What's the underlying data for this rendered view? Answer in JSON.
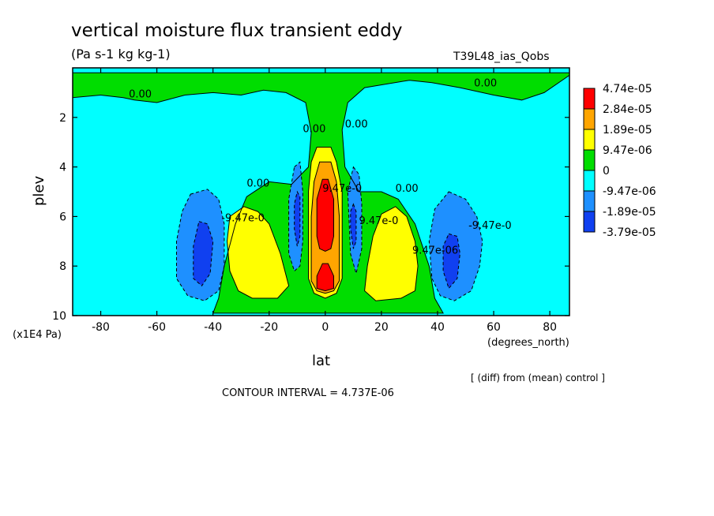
{
  "chart_data": {
    "type": "contour",
    "title": "vertical moisture flux transient eddy",
    "subtitle": "(Pa s-1 kg kg-1)",
    "run_label": "T39L48_ias_Qobs",
    "xlabel": "lat",
    "x_units": "(degrees_north)",
    "ylabel": "plev",
    "y_units": "(x1E4 Pa)",
    "xlim": [
      -90,
      87
    ],
    "ylim": [
      10,
      0
    ],
    "x_ticks": [
      -80,
      -60,
      -40,
      -20,
      0,
      20,
      40,
      60,
      80
    ],
    "y_ticks": [
      2,
      4,
      6,
      8,
      10
    ],
    "x_tick_labels": [
      "-80",
      "-60",
      "-40",
      "-20",
      "0",
      "20",
      "40",
      "60",
      "80"
    ],
    "y_tick_labels": [
      "2",
      "4",
      "6",
      "8",
      "10"
    ],
    "note": "[ (diff) from (mean) control ]",
    "contour_interval": "CONTOUR INTERVAL = 4.737E-06",
    "legend": {
      "position": "right",
      "colors": [
        "#ff0000",
        "#ffa500",
        "#ffff00",
        "#00dd00",
        "#00ffff",
        "#1e90ff",
        "#1040f0"
      ],
      "labels": [
        "4.74e-05",
        "2.84e-05",
        "1.89e-05",
        "9.47e-06",
        "0",
        "-9.47e-06",
        "-1.89e-05",
        "-3.79e-05"
      ]
    },
    "regions": [
      {
        "name": "green-top-band",
        "color": "#00dd00",
        "value_range": [
          0,
          9.47e-06
        ],
        "points": [
          [
            -90,
            0.2
          ],
          [
            87,
            0.2
          ],
          [
            87,
            0.3
          ],
          [
            78,
            1.0
          ],
          [
            70,
            1.3
          ],
          [
            60,
            1.1
          ],
          [
            48,
            0.8
          ],
          [
            38,
            0.6
          ],
          [
            30,
            0.5
          ],
          [
            22,
            0.65
          ],
          [
            14,
            0.8
          ],
          [
            8,
            1.4
          ],
          [
            6,
            2.5
          ],
          [
            7,
            4.0
          ],
          [
            12,
            5.0
          ],
          [
            20,
            5.0
          ],
          [
            26,
            5.3
          ],
          [
            32,
            6.3
          ],
          [
            37,
            8.0
          ],
          [
            39,
            9.3
          ],
          [
            42,
            9.9
          ],
          [
            -40,
            9.9
          ],
          [
            -38,
            9.3
          ],
          [
            -36,
            8.0
          ],
          [
            -32,
            6.3
          ],
          [
            -28,
            5.2
          ],
          [
            -20,
            4.6
          ],
          [
            -12,
            4.7
          ],
          [
            -6,
            4.0
          ],
          [
            -5,
            2.6
          ],
          [
            -7,
            1.4
          ],
          [
            -14,
            1.0
          ],
          [
            -22,
            0.9
          ],
          [
            -30,
            1.1
          ],
          [
            -40,
            1.0
          ],
          [
            -50,
            1.1
          ],
          [
            -60,
            1.4
          ],
          [
            -68,
            1.3
          ],
          [
            -72,
            1.2
          ],
          [
            -80,
            1.1
          ],
          [
            -90,
            1.2
          ]
        ]
      },
      {
        "name": "yellow-left",
        "color": "#ffff00",
        "value_range": [
          9.47e-06,
          1.89e-05
        ],
        "points": [
          [
            -34,
            6.0
          ],
          [
            -29,
            5.6
          ],
          [
            -24,
            5.8
          ],
          [
            -20,
            6.3
          ],
          [
            -16,
            7.5
          ],
          [
            -13,
            8.8
          ],
          [
            -17,
            9.3
          ],
          [
            -26,
            9.3
          ],
          [
            -31,
            9.0
          ],
          [
            -34,
            8.2
          ],
          [
            -35,
            7.0
          ]
        ]
      },
      {
        "name": "yellow-right",
        "color": "#ffff00",
        "value_range": [
          9.47e-06,
          1.89e-05
        ],
        "points": [
          [
            20,
            5.9
          ],
          [
            25,
            5.6
          ],
          [
            29,
            6.0
          ],
          [
            32,
            7.0
          ],
          [
            33,
            8.0
          ],
          [
            32,
            9.0
          ],
          [
            27,
            9.3
          ],
          [
            18,
            9.4
          ],
          [
            14,
            9.0
          ],
          [
            15,
            8.0
          ],
          [
            17,
            6.8
          ]
        ]
      },
      {
        "name": "yellow-center",
        "color": "#ffff00",
        "value_range": [
          9.47e-06,
          1.89e-05
        ],
        "points": [
          [
            -3,
            3.2
          ],
          [
            2,
            3.2
          ],
          [
            4,
            3.8
          ],
          [
            6,
            5.0
          ],
          [
            6,
            8.5
          ],
          [
            4,
            9.1
          ],
          [
            0,
            9.3
          ],
          [
            -4,
            9.1
          ],
          [
            -6,
            8.5
          ],
          [
            -6,
            5.0
          ],
          [
            -5,
            3.8
          ]
        ]
      },
      {
        "name": "orange-center",
        "color": "#ffa500",
        "value_range": [
          1.89e-05,
          2.84e-05
        ],
        "points": [
          [
            -2,
            3.8
          ],
          [
            2,
            3.8
          ],
          [
            4,
            4.6
          ],
          [
            5,
            6.0
          ],
          [
            5,
            8.6
          ],
          [
            3,
            9.0
          ],
          [
            0,
            9.1
          ],
          [
            -3,
            9.0
          ],
          [
            -5,
            8.6
          ],
          [
            -5,
            6.0
          ],
          [
            -4,
            4.6
          ]
        ]
      },
      {
        "name": "red-center-upper",
        "color": "#ff0000",
        "value_range": [
          2.84e-05,
          4.74e-05
        ],
        "points": [
          [
            -1,
            4.5
          ],
          [
            1,
            4.5
          ],
          [
            3,
            5.3
          ],
          [
            3,
            6.8
          ],
          [
            2,
            7.3
          ],
          [
            0,
            7.4
          ],
          [
            -2,
            7.3
          ],
          [
            -3,
            6.8
          ],
          [
            -3,
            5.3
          ]
        ]
      },
      {
        "name": "red-center-lower",
        "color": "#ff0000",
        "value_range": [
          2.84e-05,
          4.74e-05
        ],
        "points": [
          [
            -1,
            7.9
          ],
          [
            1,
            7.9
          ],
          [
            3,
            8.4
          ],
          [
            3,
            8.9
          ],
          [
            0,
            9.0
          ],
          [
            -3,
            8.9
          ],
          [
            -3,
            8.4
          ]
        ]
      },
      {
        "name": "blue-left",
        "color": "#1e90ff",
        "value_range": [
          -1.89e-05,
          -9.47e-06
        ],
        "points": [
          [
            -48,
            5.1
          ],
          [
            -42,
            4.9
          ],
          [
            -38,
            5.3
          ],
          [
            -36,
            6.3
          ],
          [
            -36,
            8.0
          ],
          [
            -38,
            9.0
          ],
          [
            -43,
            9.4
          ],
          [
            -49,
            9.2
          ],
          [
            -53,
            8.5
          ],
          [
            -53,
            7.0
          ],
          [
            -51,
            5.8
          ]
        ]
      },
      {
        "name": "blue-right",
        "color": "#1e90ff",
        "value_range": [
          -1.89e-05,
          -9.47e-06
        ],
        "points": [
          [
            44,
            5.0
          ],
          [
            50,
            5.3
          ],
          [
            54,
            6.0
          ],
          [
            56,
            7.0
          ],
          [
            55,
            8.0
          ],
          [
            52,
            9.0
          ],
          [
            46,
            9.4
          ],
          [
            41,
            9.2
          ],
          [
            38,
            8.5
          ],
          [
            37,
            7.0
          ],
          [
            39,
            5.7
          ]
        ]
      },
      {
        "name": "blue-center-left",
        "color": "#1e90ff",
        "value_range": [
          -1.89e-05,
          -9.47e-06
        ],
        "points": [
          [
            -11,
            4.0
          ],
          [
            -9,
            3.8
          ],
          [
            -8,
            5.0
          ],
          [
            -8,
            7.0
          ],
          [
            -9,
            8.0
          ],
          [
            -11,
            8.2
          ],
          [
            -13,
            7.5
          ],
          [
            -13,
            5.3
          ]
        ]
      },
      {
        "name": "blue-center-right",
        "color": "#1e90ff",
        "value_range": [
          -1.89e-05,
          -9.47e-06
        ],
        "points": [
          [
            10,
            4.0
          ],
          [
            12,
            4.3
          ],
          [
            13,
            5.5
          ],
          [
            13,
            7.3
          ],
          [
            11,
            8.3
          ],
          [
            9,
            7.5
          ],
          [
            8,
            5.0
          ]
        ]
      },
      {
        "name": "darkblue-left",
        "color": "#1040f0",
        "value_range": [
          -3.79e-05,
          -1.89e-05
        ],
        "points": [
          [
            -45,
            6.2
          ],
          [
            -42,
            6.3
          ],
          [
            -40,
            7.0
          ],
          [
            -41,
            8.3
          ],
          [
            -44,
            8.8
          ],
          [
            -47,
            8.5
          ],
          [
            -47,
            7.2
          ]
        ]
      },
      {
        "name": "darkblue-right",
        "color": "#1040f0",
        "value_range": [
          -3.79e-05,
          -1.89e-05
        ],
        "points": [
          [
            44,
            6.7
          ],
          [
            47,
            6.8
          ],
          [
            48,
            7.5
          ],
          [
            47,
            8.5
          ],
          [
            44,
            8.9
          ],
          [
            42,
            8.2
          ],
          [
            42,
            7.2
          ]
        ]
      },
      {
        "name": "darkblue-center-left",
        "color": "#1040f0",
        "value_range": [
          -3.79e-05,
          -1.89e-05
        ],
        "points": [
          [
            -10,
            5.0
          ],
          [
            -9,
            5.2
          ],
          [
            -9,
            6.8
          ],
          [
            -10,
            7.2
          ],
          [
            -11,
            6.5
          ],
          [
            -11,
            5.5
          ]
        ]
      },
      {
        "name": "darkblue-center-right",
        "color": "#1040f0",
        "value_range": [
          -3.79e-05,
          -1.89e-05
        ],
        "points": [
          [
            10,
            5.5
          ],
          [
            11,
            5.8
          ],
          [
            11,
            7.0
          ],
          [
            10,
            7.3
          ],
          [
            9,
            6.5
          ],
          [
            9,
            5.8
          ]
        ]
      }
    ],
    "contour_labels": [
      {
        "text": "0.00",
        "x": -70,
        "y": 1.2
      },
      {
        "text": "0.00",
        "x": 53,
        "y": 0.75
      },
      {
        "text": "0.00",
        "x": -8,
        "y": 2.6
      },
      {
        "text": "0.00",
        "x": 7,
        "y": 2.4
      },
      {
        "text": "0.00",
        "x": -28,
        "y": 4.8
      },
      {
        "text": "0.00",
        "x": 25,
        "y": 5.0
      },
      {
        "text": "-9.47e-0",
        "x": -37,
        "y": 6.2
      },
      {
        "text": "-9.47e-0",
        "x": 51,
        "y": 6.5
      },
      {
        "text": "9.47e-06",
        "x": 31,
        "y": 7.5
      },
      {
        "text": "9.47e-0",
        "x": 12,
        "y": 6.3
      },
      {
        "text": "9.47e-0",
        "x": -1,
        "y": 5.0
      }
    ]
  }
}
